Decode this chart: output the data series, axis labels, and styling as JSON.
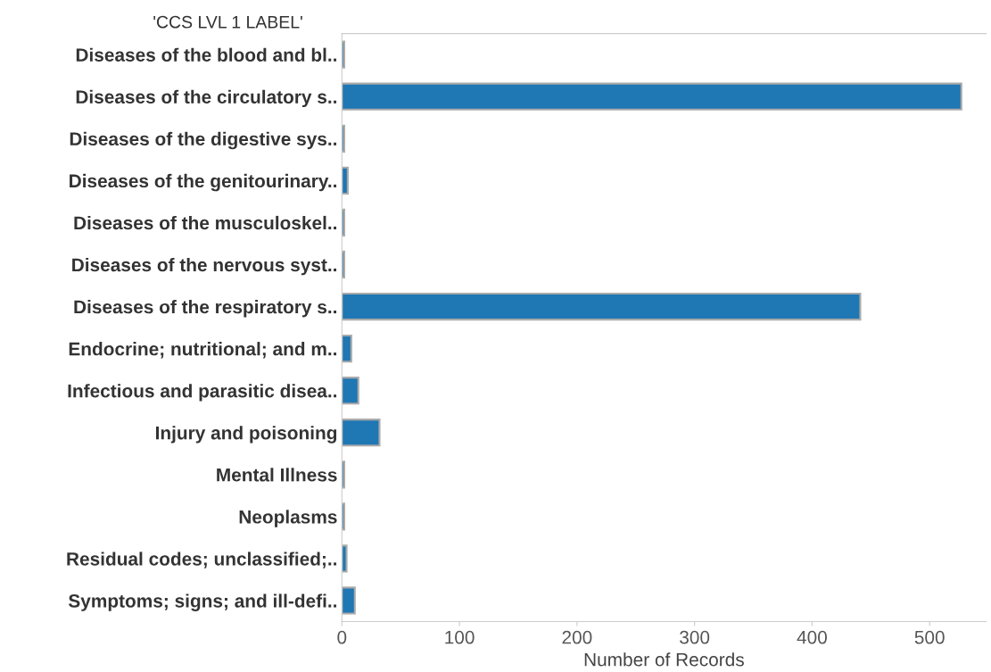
{
  "chart_data": {
    "type": "bar",
    "orientation": "horizontal",
    "ylabel": "'CCS LVL 1 LABEL'",
    "xlabel": "Number of Records",
    "categories": [
      "Diseases of the blood and bl..",
      "Diseases of the circulatory s..",
      "Diseases of the digestive sys..",
      "Diseases of the genitourinary..",
      "Diseases of the musculoskel..",
      "Diseases of the nervous syst..",
      "Diseases of the respiratory s..",
      "Endocrine; nutritional; and m..",
      "Infectious and parasitic disea..",
      "Injury and poisoning",
      "Mental Illness",
      "Neoplasms",
      "Residual codes; unclassified;..",
      "Symptoms; signs; and ill-defi.."
    ],
    "values": [
      2,
      527,
      2,
      5,
      2,
      2,
      441,
      8,
      14,
      32,
      2,
      2,
      4,
      11
    ],
    "color": "#1f77b4",
    "xlim": [
      0,
      548
    ],
    "xticks": [
      0,
      100,
      200,
      300,
      400,
      500
    ],
    "grid": false,
    "legend": false
  }
}
